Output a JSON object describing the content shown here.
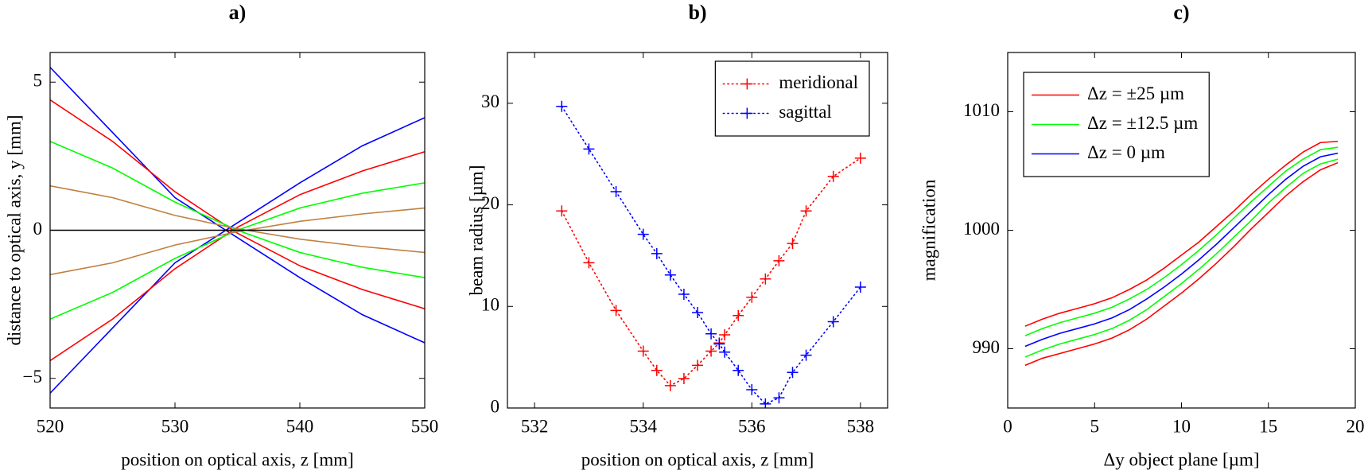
{
  "chart_data": [
    {
      "type": "line",
      "title": "a)",
      "x_label": "position on optical axis, z [mm]",
      "y_label": "distance to optical axis, y [mm]",
      "x": [
        520,
        525,
        530,
        535,
        540,
        545,
        550
      ],
      "series": [
        {
          "color": "#0000ff",
          "values": [
            5.5,
            3.3,
            1.1,
            -0.25,
            -1.6,
            -2.85,
            -3.8
          ]
        },
        {
          "color": "#0000ff",
          "values": [
            -5.5,
            -3.3,
            -1.1,
            0.25,
            1.6,
            2.85,
            3.8
          ]
        },
        {
          "color": "#ff0000",
          "values": [
            4.4,
            3.0,
            1.3,
            -0.1,
            -1.2,
            -2.0,
            -2.65
          ]
        },
        {
          "color": "#ff0000",
          "values": [
            -4.4,
            -3.0,
            -1.3,
            0.1,
            1.2,
            2.0,
            2.65
          ]
        },
        {
          "color": "#00ff00",
          "values": [
            3.0,
            2.1,
            0.95,
            0.0,
            -0.75,
            -1.25,
            -1.6
          ]
        },
        {
          "color": "#00ff00",
          "values": [
            -3.0,
            -2.1,
            -0.95,
            0.0,
            0.75,
            1.25,
            1.6
          ]
        },
        {
          "color": "#bf8040",
          "values": [
            1.5,
            1.1,
            0.5,
            0.05,
            -0.3,
            -0.55,
            -0.75
          ]
        },
        {
          "color": "#bf8040",
          "values": [
            -1.5,
            -1.1,
            -0.5,
            -0.05,
            0.3,
            0.55,
            0.75
          ]
        },
        {
          "color": "#000000",
          "values": [
            0,
            0,
            0,
            0,
            0,
            0,
            0
          ]
        }
      ],
      "xlim": [
        520,
        550
      ],
      "ylim": [
        -6,
        6
      ],
      "xticks": [
        520,
        530,
        540,
        550
      ],
      "yticks": [
        {
          "value": -5,
          "label": "−5"
        },
        0,
        5
      ]
    },
    {
      "type": "line",
      "title": "b)",
      "x_label": "position on optical axis, z [mm]",
      "y_label": "beam radius [µm]",
      "x": [
        532.5,
        533,
        533.5,
        534,
        534.25,
        534.5,
        534.75,
        535,
        535.25,
        535.4,
        535.5,
        535.75,
        536,
        536.25,
        536.5,
        536.75,
        537,
        537.5,
        538
      ],
      "series": [
        {
          "name": "meridional",
          "color": "#ff0000",
          "values": [
            19.4,
            14.3,
            9.6,
            5.6,
            3.7,
            2.2,
            2.9,
            4.2,
            5.6,
            6.4,
            7.2,
            9.1,
            10.9,
            12.7,
            14.5,
            16.2,
            19.4,
            22.8,
            24.6
          ]
        },
        {
          "name": "sagittal",
          "color": "#0000ff",
          "values": [
            29.7,
            25.5,
            21.3,
            17.1,
            15.2,
            13.1,
            11.2,
            9.4,
            7.3,
            6.3,
            5.5,
            3.7,
            1.8,
            0.4,
            1.0,
            3.5,
            5.2,
            8.5,
            11.9
          ]
        }
      ],
      "line_style": "dotted",
      "marker": "+",
      "legend": "upper right",
      "xlim": [
        531.5,
        538.5
      ],
      "ylim": [
        0,
        35
      ],
      "xticks": [
        532,
        534,
        536,
        538
      ],
      "yticks": [
        0,
        10,
        20,
        30
      ]
    },
    {
      "type": "line",
      "title": "c)",
      "x_label": "Δy object plane [µm]",
      "y_label": "magnification",
      "x": [
        1,
        2,
        3,
        4,
        5,
        6,
        7,
        8,
        9,
        10,
        11,
        12,
        13,
        14,
        15,
        16,
        17,
        18,
        19
      ],
      "series": [
        {
          "name": "Δz = ±25 µm",
          "color": "#ff0000",
          "values": [
            991.9,
            992.5,
            993.0,
            993.4,
            993.8,
            994.3,
            995.0,
            995.8,
            996.8,
            997.9,
            999.0,
            1000.3,
            1001.6,
            1003.0,
            1004.3,
            1005.5,
            1006.6,
            1007.4,
            1007.5
          ]
        },
        {
          "name": "Δz = ±12.5 µm",
          "color": "#00ff00",
          "values": [
            991.1,
            991.7,
            992.2,
            992.6,
            993.0,
            993.5,
            994.2,
            995.0,
            996.0,
            997.1,
            998.3,
            999.6,
            1001.0,
            1002.4,
            1003.7,
            1005.0,
            1006.0,
            1006.8,
            1007.0
          ]
        },
        {
          "name": "Δz = 0 µm",
          "color": "#0000ff",
          "values": [
            990.2,
            990.8,
            991.3,
            991.7,
            992.1,
            992.6,
            993.3,
            994.2,
            995.2,
            996.3,
            997.5,
            998.8,
            1000.2,
            1001.6,
            1003.0,
            1004.3,
            1005.4,
            1006.2,
            1006.5
          ]
        },
        {
          "color": "#00ff00",
          "values": [
            989.3,
            989.9,
            990.4,
            990.8,
            991.2,
            991.7,
            992.4,
            993.3,
            994.4,
            995.5,
            996.7,
            998.0,
            999.4,
            1000.8,
            1002.3,
            1003.6,
            1004.8,
            1005.6,
            1006.0
          ]
        },
        {
          "color": "#ff0000",
          "values": [
            988.6,
            989.2,
            989.6,
            990.0,
            990.4,
            990.9,
            991.6,
            992.5,
            993.6,
            994.7,
            995.9,
            997.2,
            998.6,
            1000.1,
            1001.5,
            1002.9,
            1004.1,
            1005.1,
            1005.7
          ]
        }
      ],
      "legend": "upper left",
      "xlim": [
        0,
        20
      ],
      "ylim": [
        985,
        1015
      ],
      "xticks": [
        0,
        5,
        10,
        15,
        20
      ],
      "yticks": [
        990,
        1000,
        1010
      ]
    }
  ]
}
